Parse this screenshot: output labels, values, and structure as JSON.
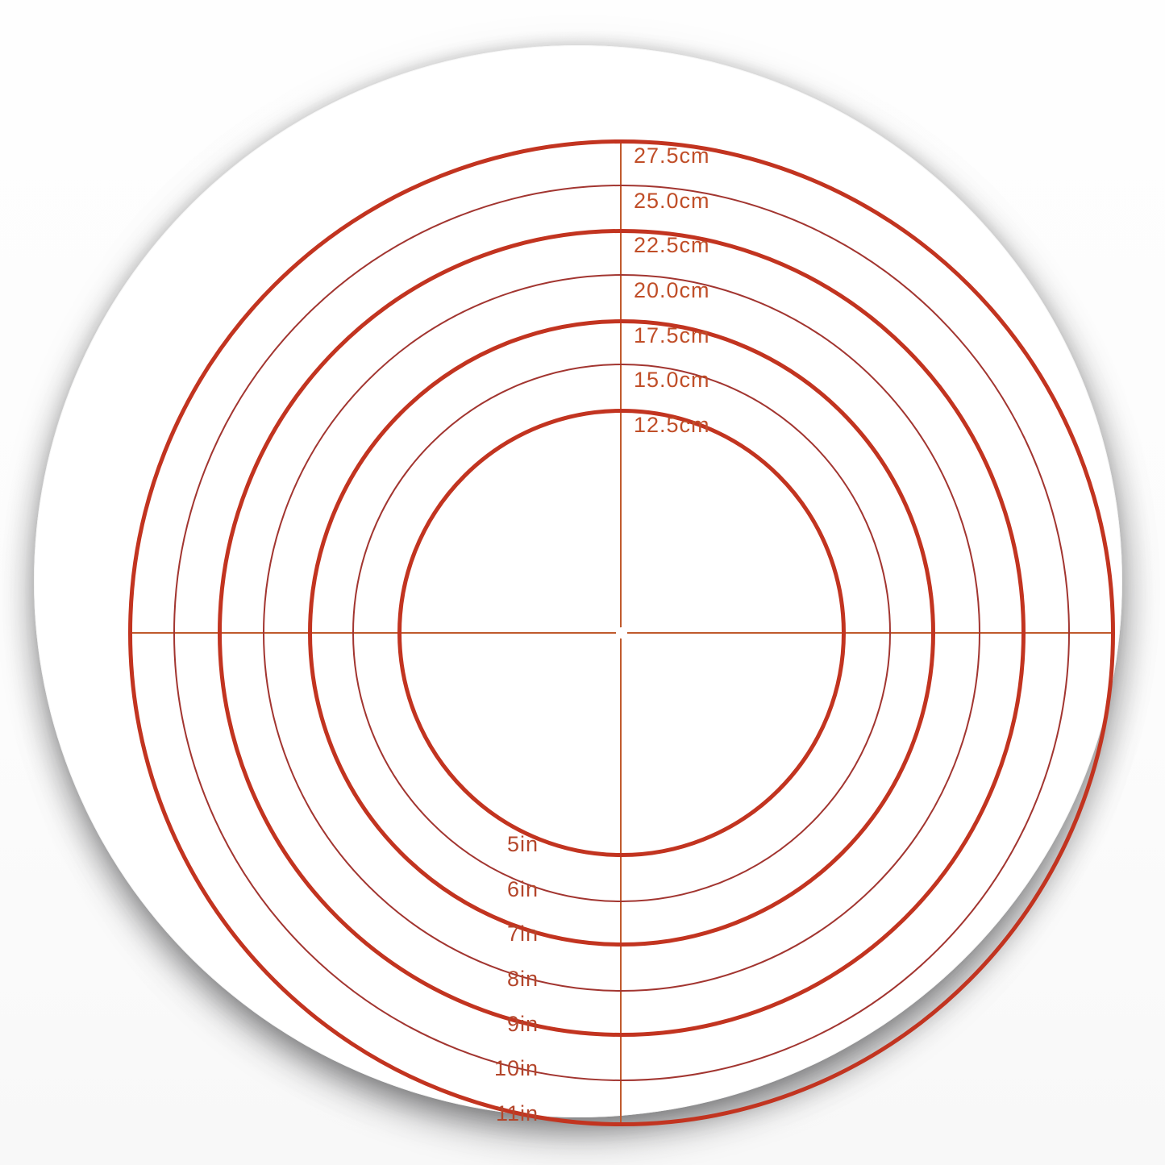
{
  "scene": {
    "description_labels_visible_only": true
  },
  "colors": {
    "background": "#fdfdfd",
    "disc": "#ffffff",
    "ring_thick": "#c23420",
    "ring_thin": "#a23530",
    "crosshair": "#c05a2d",
    "label_cm": "#c04e28",
    "label_in": "#b4462b"
  },
  "rings": [
    {
      "cm_label": "12.5cm",
      "in_label": "5in",
      "diameter_cm": 12.5,
      "diameter_in": 5,
      "weight": "thick"
    },
    {
      "cm_label": "15.0cm",
      "in_label": "6in",
      "diameter_cm": 15.0,
      "diameter_in": 6,
      "weight": "thin"
    },
    {
      "cm_label": "17.5cm",
      "in_label": "7in",
      "diameter_cm": 17.5,
      "diameter_in": 7,
      "weight": "thick"
    },
    {
      "cm_label": "20.0cm",
      "in_label": "8in",
      "diameter_cm": 20.0,
      "diameter_in": 8,
      "weight": "thin"
    },
    {
      "cm_label": "22.5cm",
      "in_label": "9in",
      "diameter_cm": 22.5,
      "diameter_in": 9,
      "weight": "thick"
    },
    {
      "cm_label": "25.0cm",
      "in_label": "10in",
      "diameter_cm": 25.0,
      "diameter_in": 10,
      "weight": "thin"
    },
    {
      "cm_label": "27.5cm",
      "in_label": "11in",
      "diameter_cm": 27.5,
      "diameter_in": 11,
      "weight": "thick"
    }
  ]
}
